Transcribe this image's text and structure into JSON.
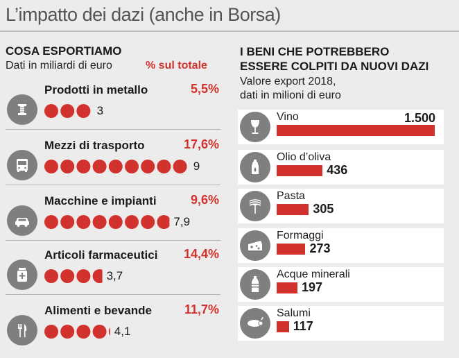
{
  "title": "L’impatto dei dazi (anche in Borsa)",
  "left": {
    "heading": "COSA ESPORTIAMO",
    "subheading": "Dati in miliardi di euro",
    "pct_header": "% sul totale"
  },
  "right": {
    "heading_line1": "I BENI CHE POTREBBERO",
    "heading_line2": "ESSERE COLPITI DA NUOVI DAZI",
    "sub_line1": "Valore export 2018,",
    "sub_line2": "dati in milioni di euro"
  },
  "colors": {
    "accent": "#d2322d",
    "icon_bg": "#7f7f7f",
    "panel": "#ffffff"
  },
  "chart_data": [
    {
      "type": "bar",
      "title": "COSA ESPORTIAMO",
      "unit": "miliardi di euro",
      "categories": [
        "Prodotti in metallo",
        "Mezzi di trasporto",
        "Macchine e impianti",
        "Articoli farmaceutici",
        "Alimenti e bevande"
      ],
      "values": [
        3,
        9,
        7.9,
        3.7,
        4.1
      ],
      "value_labels": [
        "3",
        "9",
        "7,9",
        "3,7",
        "4,1"
      ],
      "share_labels": [
        "5,5%",
        "17,6%",
        "9,6%",
        "14,4%",
        "11,7%"
      ],
      "icons": [
        "metal-spool-icon",
        "bus-icon",
        "car-icon",
        "medicine-icon",
        "fork-knife-icon"
      ]
    },
    {
      "type": "bar",
      "title": "I BENI CHE POTREBBERO ESSERE COLPITI DA NUOVI DAZI",
      "unit": "milioni di euro",
      "categories": [
        "Vino",
        "Olio d’oliva",
        "Pasta",
        "Formaggi",
        "Acque minerali",
        "Salumi"
      ],
      "values": [
        1500,
        436,
        305,
        273,
        197,
        117
      ],
      "value_labels": [
        "1.500",
        "436",
        "305",
        "273",
        "197",
        "117"
      ],
      "icons": [
        "wine-glass-icon",
        "oil-bottle-icon",
        "pasta-fork-icon",
        "cheese-icon",
        "water-bottle-icon",
        "salami-icon"
      ]
    }
  ]
}
